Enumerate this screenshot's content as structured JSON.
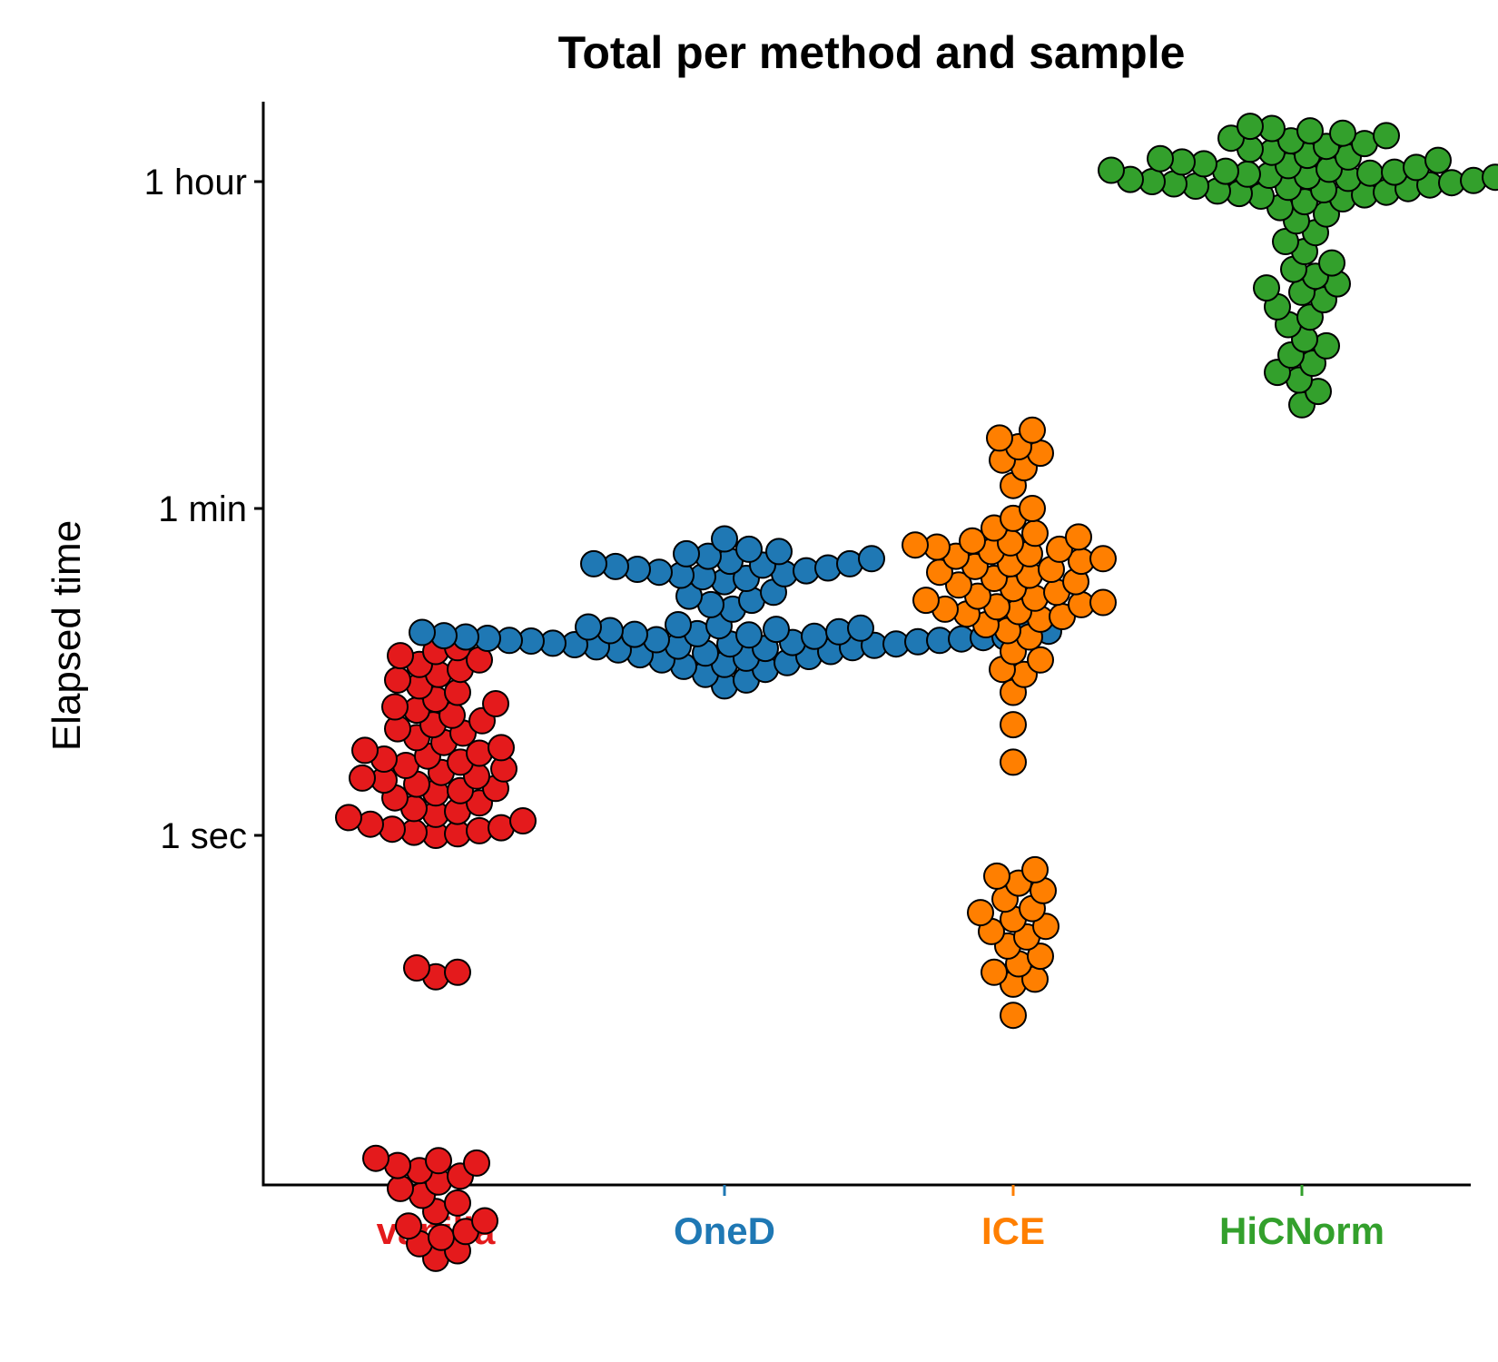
{
  "chart_data": {
    "type": "scatter",
    "subtype": "beeswarm",
    "title": "Total per method and sample",
    "xlabel": "",
    "ylabel": "Elapsed time",
    "y_scale": "log10",
    "y_unit": "seconds",
    "ylim": [
      0.003,
      10000
    ],
    "y_ticks": [
      {
        "value": 1,
        "label": "1 sec"
      },
      {
        "value": 60,
        "label": "1 min"
      },
      {
        "value": 3600,
        "label": "1 hour"
      }
    ],
    "grid": false,
    "legend": "none",
    "categories": [
      "vanilla",
      "OneD",
      "ICE",
      "HiCNorm"
    ],
    "series": [
      {
        "category": "vanilla",
        "color": "#E41A1C",
        "values": [
          0.005,
          0.0055,
          0.006,
          0.0065,
          0.007,
          0.0075,
          0.008,
          0.009,
          0.01,
          0.011,
          0.012,
          0.013,
          0.014,
          0.015,
          0.016,
          0.0165,
          0.017,
          0.0175,
          0.17,
          0.18,
          0.19,
          1.0,
          1.02,
          1.04,
          1.06,
          1.08,
          1.1,
          1.15,
          1.2,
          1.25,
          1.3,
          1.35,
          1.4,
          1.5,
          1.6,
          1.7,
          1.75,
          1.8,
          1.9,
          2.0,
          2.05,
          2.1,
          2.2,
          2.3,
          2.4,
          2.5,
          2.6,
          2.7,
          2.8,
          2.9,
          3.0,
          3.2,
          3.4,
          3.6,
          3.8,
          4.0,
          4.2,
          4.5,
          4.8,
          5.0,
          5.2,
          5.5,
          6.0,
          6.5,
          7.0,
          7.5,
          8.0,
          8.5,
          9.0,
          9.5,
          10.0,
          10.5
        ]
      },
      {
        "category": "OneD",
        "color": "#1F78B4",
        "values": [
          6.5,
          7.0,
          7.5,
          8.0,
          8.3,
          8.5,
          8.7,
          9.0,
          9.2,
          9.4,
          9.6,
          9.8,
          10.0,
          10.2,
          10.4,
          10.5,
          10.6,
          10.7,
          10.8,
          10.9,
          11.0,
          11.0,
          11.1,
          11.2,
          11.3,
          11.4,
          11.5,
          11.5,
          11.6,
          11.7,
          11.8,
          11.9,
          12.0,
          12.0,
          12.1,
          12.2,
          12.3,
          12.4,
          12.5,
          12.6,
          12.7,
          12.8,
          12.9,
          13.0,
          13.2,
          13.4,
          13.6,
          13.8,
          14.0,
          17.0,
          18.0,
          19.0,
          20.0,
          21.0,
          24.0,
          25.0,
          25.5,
          26.0,
          26.5,
          27.0,
          27.5,
          28.0,
          28.5,
          29.0,
          29.5,
          30.0,
          30.0,
          31.0,
          32.0,
          33.0,
          34.0,
          35.0,
          36.0,
          41.0
        ]
      },
      {
        "category": "ICE",
        "color": "#FF7F00",
        "values": [
          0.105,
          0.155,
          0.165,
          0.18,
          0.2,
          0.22,
          0.25,
          0.28,
          0.3,
          0.32,
          0.35,
          0.38,
          0.4,
          0.45,
          0.5,
          0.55,
          0.6,
          0.65,
          2.5,
          4.0,
          6.0,
          7.5,
          8.0,
          9.0,
          10.0,
          12.0,
          13.0,
          14.0,
          15.0,
          15.5,
          16.0,
          16.5,
          17.0,
          17.5,
          18.0,
          18.5,
          19.0,
          19.5,
          20.0,
          21.0,
          22.0,
          23.0,
          24.0,
          25.0,
          26.0,
          27.0,
          28.0,
          29.0,
          30.0,
          31.0,
          32.0,
          33.0,
          34.0,
          35.0,
          36.0,
          37.0,
          38.0,
          39.0,
          40.0,
          42.0,
          44.0,
          47.0,
          53.0,
          60.0,
          80.0,
          100.0,
          110.0,
          120.0,
          130.0,
          145.0,
          160.0
        ]
      },
      {
        "category": "HiCNorm",
        "color": "#33A02C",
        "values": [
          220,
          260,
          300,
          330,
          370,
          410,
          460,
          500,
          600,
          660,
          750,
          820,
          900,
          950,
          1000,
          1100,
          1200,
          1300,
          1500,
          1700,
          1900,
          2200,
          2400,
          2600,
          2800,
          2900,
          3000,
          3050,
          3100,
          3150,
          3200,
          3250,
          3300,
          3350,
          3400,
          3450,
          3500,
          3550,
          3600,
          3650,
          3700,
          3750,
          3800,
          3850,
          3900,
          3950,
          4000,
          4050,
          4100,
          4150,
          4200,
          4300,
          4400,
          4500,
          4600,
          4700,
          4800,
          4900,
          5000,
          5200,
          5400,
          5600,
          5800,
          6000,
          6200,
          6400,
          6600,
          6800,
          7000,
          7200
        ]
      }
    ]
  }
}
